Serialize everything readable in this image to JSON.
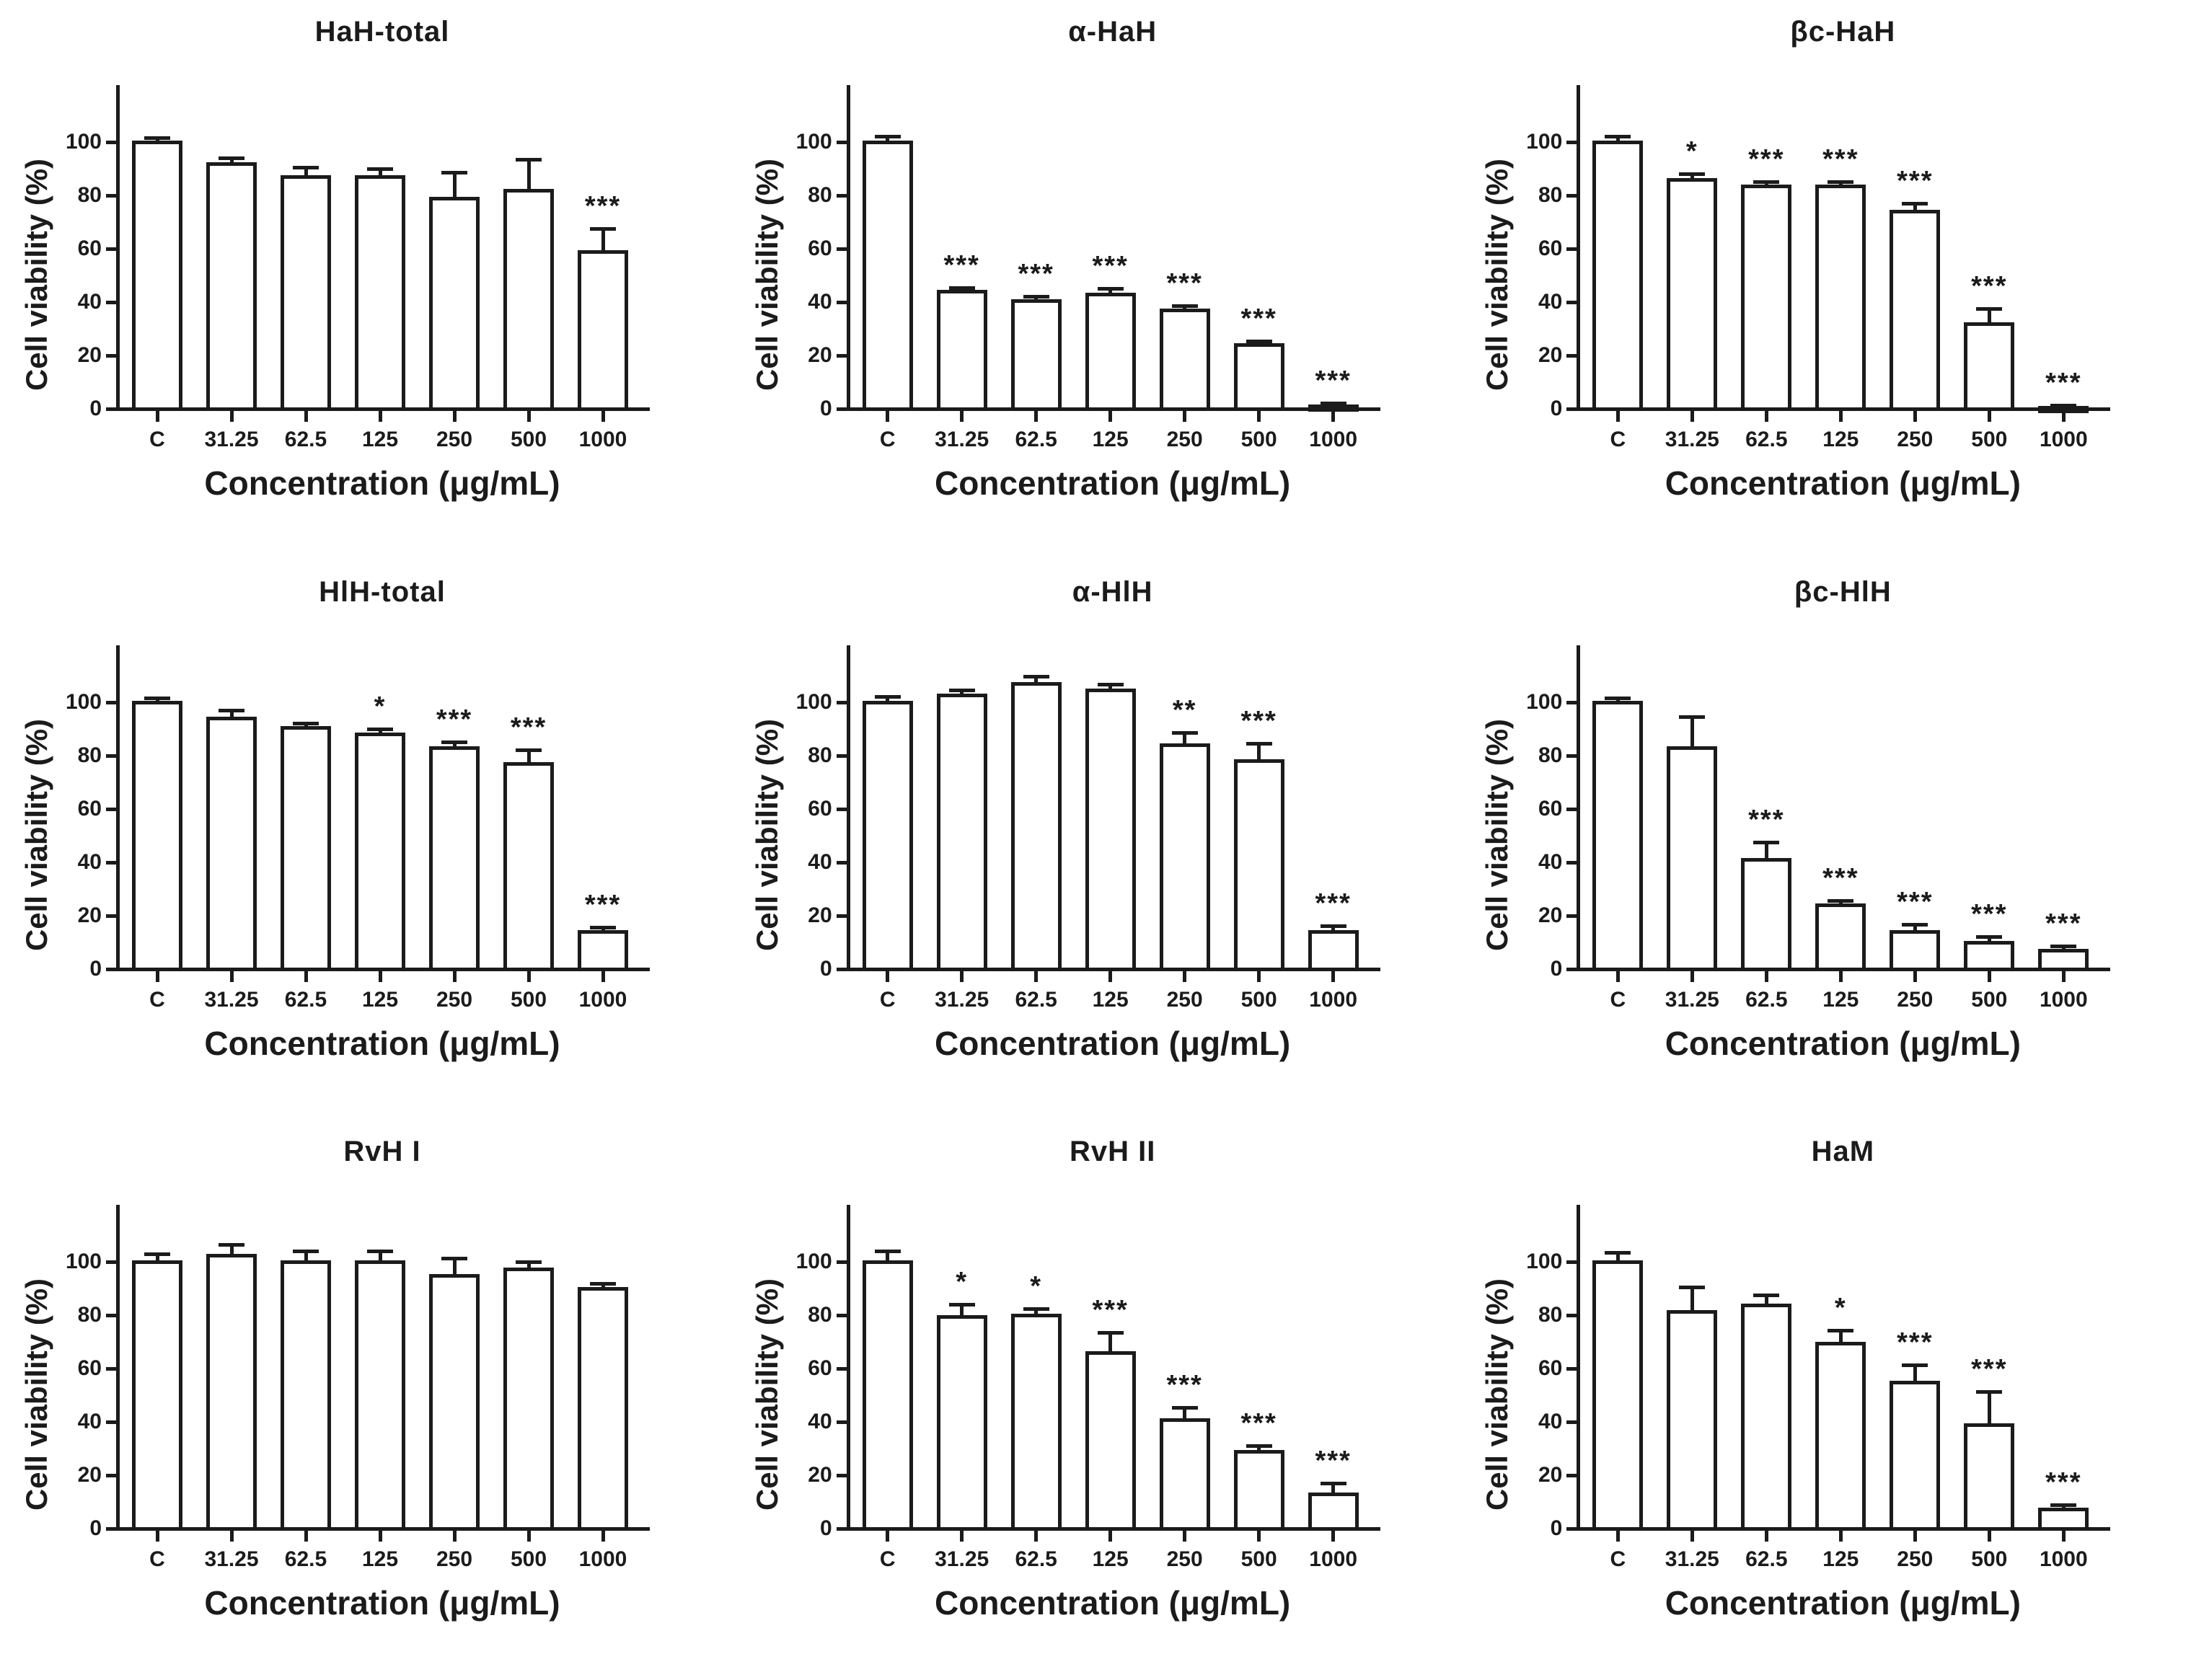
{
  "figure": {
    "background": "#ffffff",
    "ink": "#1b1b1b",
    "bar_fill": "#ffffff"
  },
  "chart_data": [
    {
      "type": "bar",
      "title": "HaH-total",
      "xlabel": "Concentration (μg/mL)",
      "ylabel": "Cell viability (%)",
      "categories": [
        "C",
        "31.25",
        "62.5",
        "125",
        "250",
        "500",
        "1000"
      ],
      "values": [
        100,
        92,
        87,
        87,
        79,
        82,
        59
      ],
      "errors": [
        1,
        1.5,
        3,
        2.5,
        9,
        11,
        8
      ],
      "significance": [
        "",
        "",
        "",
        "",
        "",
        "",
        "***"
      ],
      "yticks": [
        0,
        20,
        40,
        60,
        80,
        100
      ],
      "ylim": [
        0,
        118
      ],
      "grid": false,
      "legend": false
    },
    {
      "type": "bar",
      "title": "α-HaH",
      "xlabel": "Concentration (μg/mL)",
      "ylabel": "Cell viability (%)",
      "categories": [
        "C",
        "31.25",
        "62.5",
        "125",
        "250",
        "500",
        "1000"
      ],
      "values": [
        100,
        44,
        40.5,
        43,
        37,
        24,
        1
      ],
      "errors": [
        1.5,
        1,
        1,
        1.5,
        1,
        1,
        0.5
      ],
      "significance": [
        "",
        "***",
        "***",
        "***",
        "***",
        "***",
        "***"
      ],
      "yticks": [
        0,
        20,
        40,
        60,
        80,
        100
      ],
      "ylim": [
        0,
        118
      ],
      "grid": false,
      "legend": false
    },
    {
      "type": "bar",
      "title": "βc-HaH",
      "xlabel": "Concentration (μg/mL)",
      "ylabel": "Cell viability (%)",
      "categories": [
        "C",
        "31.25",
        "62.5",
        "125",
        "250",
        "500",
        "1000"
      ],
      "values": [
        100,
        86,
        83.5,
        83.5,
        74,
        32,
        0.5
      ],
      "errors": [
        1.5,
        1.5,
        1,
        1,
        2.5,
        5,
        0.3
      ],
      "significance": [
        "",
        "*",
        "***",
        "***",
        "***",
        "***",
        "***"
      ],
      "yticks": [
        0,
        20,
        40,
        60,
        80,
        100
      ],
      "ylim": [
        0,
        118
      ],
      "grid": false,
      "legend": false
    },
    {
      "type": "bar",
      "title": "HlH-total",
      "xlabel": "Concentration (μg/mL)",
      "ylabel": "Cell viability (%)",
      "categories": [
        "C",
        "31.25",
        "62.5",
        "125",
        "250",
        "500",
        "1000"
      ],
      "values": [
        100,
        94,
        90.5,
        88,
        83,
        77,
        14
      ],
      "errors": [
        1,
        2.5,
        1,
        1.5,
        1.5,
        4.5,
        1
      ],
      "significance": [
        "",
        "",
        "",
        "*",
        "***",
        "***",
        "***"
      ],
      "yticks": [
        0,
        20,
        40,
        60,
        80,
        100
      ],
      "ylim": [
        0,
        118
      ],
      "grid": false,
      "legend": false
    },
    {
      "type": "bar",
      "title": "α-HlH",
      "xlabel": "Concentration (μg/mL)",
      "ylabel": "Cell viability (%)",
      "categories": [
        "C",
        "31.25",
        "62.5",
        "125",
        "250",
        "500",
        "1000"
      ],
      "values": [
        100,
        102.5,
        107,
        104.5,
        84,
        78,
        14
      ],
      "errors": [
        1.5,
        1.5,
        2,
        1.5,
        4,
        6,
        1.5
      ],
      "significance": [
        "",
        "",
        "",
        "",
        "**",
        "***",
        "***"
      ],
      "yticks": [
        0,
        20,
        40,
        60,
        80,
        100
      ],
      "ylim": [
        0,
        118
      ],
      "grid": false,
      "legend": false
    },
    {
      "type": "bar",
      "title": "βc-HlH",
      "xlabel": "Concentration (μg/mL)",
      "ylabel": "Cell viability (%)",
      "categories": [
        "C",
        "31.25",
        "62.5",
        "125",
        "250",
        "500",
        "1000"
      ],
      "values": [
        100,
        83,
        41,
        24,
        14,
        10,
        7
      ],
      "errors": [
        1,
        11,
        6,
        1,
        2,
        1.5,
        1
      ],
      "significance": [
        "",
        "",
        "***",
        "***",
        "***",
        "***",
        "***"
      ],
      "yticks": [
        0,
        20,
        40,
        60,
        80,
        100
      ],
      "ylim": [
        0,
        118
      ],
      "grid": false,
      "legend": false
    },
    {
      "type": "bar",
      "title": "RvH I",
      "xlabel": "Concentration (μg/mL)",
      "ylabel": "Cell viability (%)",
      "categories": [
        "C",
        "31.25",
        "62.5",
        "125",
        "250",
        "500",
        "1000"
      ],
      "values": [
        100,
        102.5,
        100,
        100,
        95,
        97.5,
        90
      ],
      "errors": [
        2.5,
        3.5,
        3.5,
        3.5,
        6,
        2,
        1.5
      ],
      "significance": [
        "",
        "",
        "",
        "",
        "",
        "",
        ""
      ],
      "yticks": [
        0,
        20,
        40,
        60,
        80,
        100
      ],
      "ylim": [
        0,
        118
      ],
      "grid": false,
      "legend": false
    },
    {
      "type": "bar",
      "title": "RvH II",
      "xlabel": "Concentration (μg/mL)",
      "ylabel": "Cell viability (%)",
      "categories": [
        "C",
        "31.25",
        "62.5",
        "125",
        "250",
        "500",
        "1000"
      ],
      "values": [
        100,
        79.5,
        80,
        66,
        41,
        29,
        13
      ],
      "errors": [
        3.5,
        4,
        2,
        7,
        4,
        1.5,
        3.5
      ],
      "significance": [
        "",
        "*",
        "*",
        "***",
        "***",
        "***",
        "***"
      ],
      "yticks": [
        0,
        20,
        40,
        60,
        80,
        100
      ],
      "ylim": [
        0,
        118
      ],
      "grid": false,
      "legend": false
    },
    {
      "type": "bar",
      "title": "HaM",
      "xlabel": "Concentration (μg/mL)",
      "ylabel": "Cell viability (%)",
      "categories": [
        "C",
        "31.25",
        "62.5",
        "125",
        "250",
        "500",
        "1000"
      ],
      "values": [
        100,
        81.5,
        84,
        69.5,
        55,
        39,
        7.5
      ],
      "errors": [
        3,
        8.5,
        3,
        4.5,
        6,
        12,
        1
      ],
      "significance": [
        "",
        "",
        "",
        "*",
        "***",
        "***",
        "***"
      ],
      "yticks": [
        0,
        20,
        40,
        60,
        80,
        100
      ],
      "ylim": [
        0,
        118
      ],
      "grid": false,
      "legend": false
    }
  ]
}
